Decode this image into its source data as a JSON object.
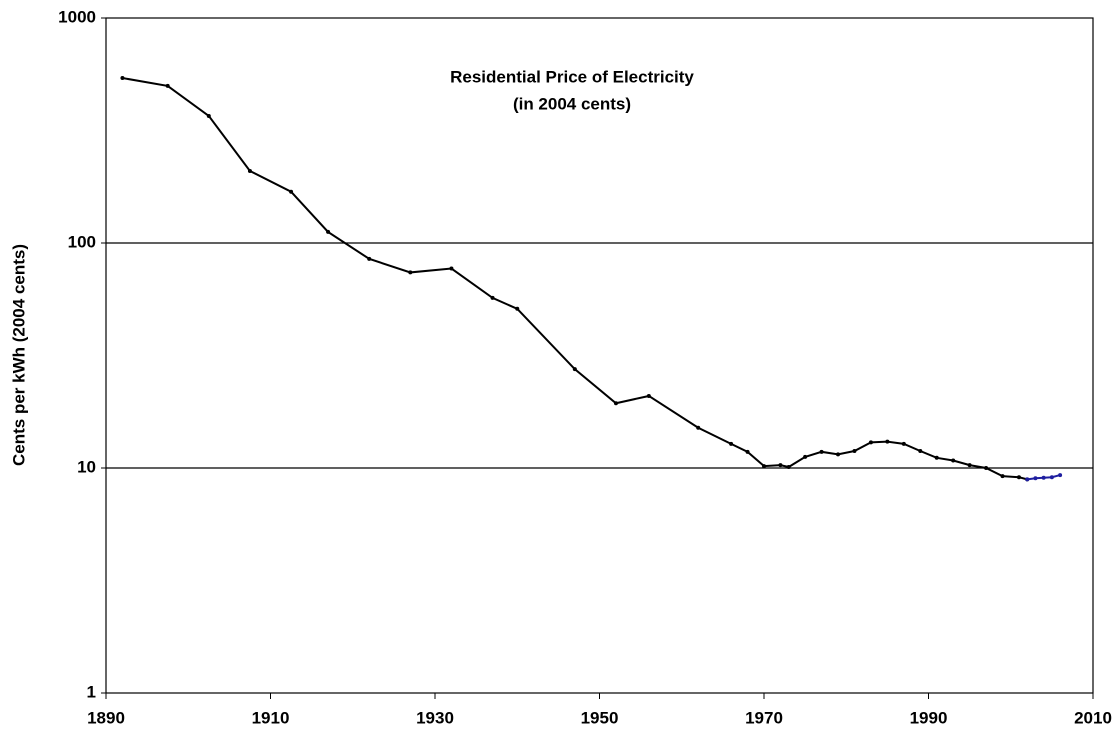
{
  "chart_data": {
    "type": "line",
    "title": [
      "Residential Price of Electricity",
      "(in 2004 cents)"
    ],
    "y_label": "Cents per kWh (2004 cents)",
    "xlim": [
      1890,
      2010
    ],
    "xticks": [
      1890,
      1910,
      1930,
      1950,
      1970,
      1990,
      2010
    ],
    "ylim": [
      1,
      1000
    ],
    "yticks": [
      1,
      10,
      100,
      1000
    ],
    "y_log": true,
    "grid": true,
    "series": [
      {
        "color": "#000000",
        "x": [
          1892,
          1897.5,
          1902.5,
          1907.5,
          1912.5,
          1917,
          1922,
          1927,
          1932,
          1937,
          1940,
          1947,
          1952,
          1956,
          1962,
          1966,
          1968,
          1970,
          1972,
          1973,
          1975,
          1977,
          1979,
          1981,
          1983,
          1985,
          1987,
          1989,
          1991,
          1993,
          1995,
          1997,
          1999,
          2001,
          2002
        ],
        "values": [
          541,
          499,
          367,
          209,
          169,
          112,
          85,
          74,
          77,
          57,
          51,
          27.5,
          19.4,
          20.9,
          15.1,
          12.8,
          11.8,
          10.2,
          10.3,
          10.1,
          11.2,
          11.8,
          11.5,
          11.9,
          13.0,
          13.1,
          12.8,
          11.9,
          11.1,
          10.8,
          10.3,
          10.0,
          9.2,
          9.1,
          8.9
        ]
      },
      {
        "color": "#1f1fa0",
        "x": [
          2002,
          2003,
          2004,
          2005,
          2006
        ],
        "values": [
          8.9,
          9.0,
          9.05,
          9.1,
          9.3
        ]
      }
    ]
  }
}
